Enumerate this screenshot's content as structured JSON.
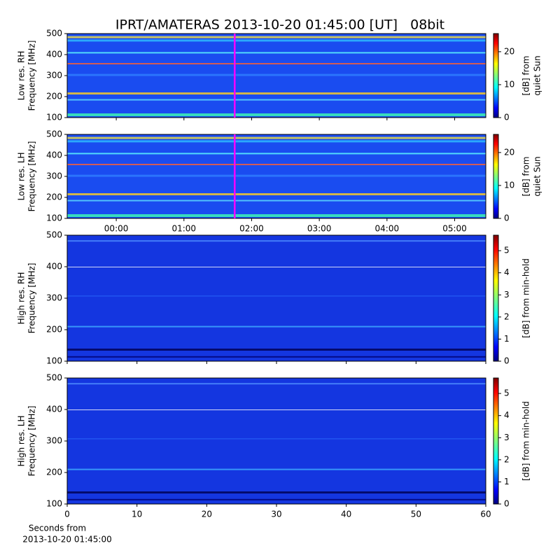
{
  "title": "IPRT/AMATERAS 2013-10-20 01:45:00 [UT]   08bit",
  "chart_data": [
    {
      "type": "heatmap",
      "ylabel": [
        "Low res. RH",
        "Frequency [MHz]"
      ],
      "ylim": [
        100,
        500
      ],
      "yticks": [
        100,
        200,
        300,
        400,
        500
      ],
      "xlim": [
        -0.725,
        5.46
      ],
      "colormap": "jet",
      "clim": [
        0,
        25.5
      ],
      "cticks": [
        0,
        10,
        20
      ],
      "clabel": [
        "[dB] from",
        "quiet Sun"
      ],
      "marker": 1.75,
      "marker_color": "#ff00ff"
    },
    {
      "type": "heatmap",
      "ylabel": [
        "Low res. LH",
        "Frequency [MHz]"
      ],
      "ylim": [
        100,
        500
      ],
      "yticks": [
        100,
        200,
        300,
        400,
        500
      ],
      "xlim": [
        -0.725,
        5.46
      ],
      "xticks": [
        {
          "value": 0,
          "label": "00:00"
        },
        {
          "value": 1,
          "label": "01:00"
        },
        {
          "value": 2,
          "label": "02:00"
        },
        {
          "value": 3,
          "label": "03:00"
        },
        {
          "value": 4,
          "label": "04:00"
        },
        {
          "value": 5,
          "label": "05:00"
        }
      ],
      "colormap": "jet",
      "clim": [
        0,
        25.5
      ],
      "cticks": [
        0,
        10,
        20
      ],
      "clabel": [
        "[dB] from",
        "quiet Sun"
      ],
      "marker": 1.75,
      "marker_color": "#ff00ff"
    },
    {
      "type": "heatmap",
      "ylabel": [
        "High res. RH",
        "Frequency [MHz]"
      ],
      "ylim": [
        100,
        500
      ],
      "yticks": [
        100,
        200,
        300,
        400,
        500
      ],
      "xlim": [
        0,
        60
      ],
      "colormap": "jet",
      "clim": [
        0,
        5.7
      ],
      "cticks": [
        0,
        1,
        2,
        3,
        4,
        5
      ],
      "clabel": [
        "[dB] from min-hold"
      ]
    },
    {
      "type": "heatmap",
      "ylabel": [
        "High res. LH",
        "Frequency [MHz]"
      ],
      "ylim": [
        100,
        500
      ],
      "yticks": [
        100,
        200,
        300,
        400,
        500
      ],
      "xlim": [
        0,
        60
      ],
      "xticks": [
        0,
        10,
        20,
        30,
        40,
        50,
        60
      ],
      "xlabel": [
        "Seconds from",
        "2013-10-20 01:45:00"
      ],
      "colormap": "jet",
      "clim": [
        0,
        5.7
      ],
      "cticks": [
        0,
        1,
        2,
        3,
        4,
        5
      ],
      "clabel": [
        "[dB] from min-hold"
      ]
    }
  ]
}
